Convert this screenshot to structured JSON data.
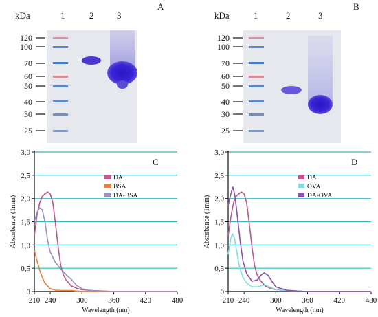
{
  "gels": [
    {
      "panel_label": "A",
      "unit": "kDa",
      "lane_labels": [
        "1",
        "2",
        "3"
      ],
      "markers": [
        "120",
        "100",
        "70",
        "60",
        "50",
        "40",
        "30",
        "25"
      ]
    },
    {
      "panel_label": "B",
      "unit": "kDa",
      "lane_labels": [
        "1",
        "2",
        "3"
      ],
      "markers": [
        "120",
        "100",
        "70",
        "60",
        "50",
        "40",
        "30",
        "25"
      ]
    }
  ],
  "chart_data": [
    {
      "type": "line",
      "panel_label": "C",
      "xlabel": "Wavelength (nm)",
      "ylabel": "Absorbance (1mm)",
      "xlim": [
        210,
        480
      ],
      "ylim": [
        0,
        3.0
      ],
      "x_ticks": [
        "210",
        "240",
        "300",
        "360",
        "420",
        "480"
      ],
      "y_ticks": [
        "0",
        "0,5",
        "1,0",
        "1,5",
        "2,0",
        "2,5",
        "3,0"
      ],
      "grid": "horizontal",
      "legend": "right",
      "series": [
        {
          "name": "DA",
          "color": "#c0568c",
          "points": [
            [
              210,
              1.2
            ],
            [
              215,
              1.65
            ],
            [
              220,
              1.9
            ],
            [
              225,
              2.05
            ],
            [
              230,
              2.1
            ],
            [
              235,
              2.14
            ],
            [
              240,
              2.1
            ],
            [
              245,
              1.9
            ],
            [
              250,
              1.45
            ],
            [
              255,
              0.95
            ],
            [
              260,
              0.55
            ],
            [
              265,
              0.35
            ],
            [
              270,
              0.25
            ],
            [
              275,
              0.18
            ],
            [
              280,
              0.12
            ],
            [
              290,
              0.07
            ],
            [
              300,
              0.04
            ],
            [
              320,
              0.02
            ],
            [
              340,
              0.01
            ],
            [
              360,
              0.0
            ],
            [
              420,
              0.0
            ],
            [
              480,
              0.0
            ]
          ]
        },
        {
          "name": "BSA",
          "color": "#e8823c",
          "points": [
            [
              210,
              0.88
            ],
            [
              215,
              0.66
            ],
            [
              220,
              0.46
            ],
            [
              225,
              0.3
            ],
            [
              230,
              0.18
            ],
            [
              240,
              0.06
            ],
            [
              250,
              0.03
            ],
            [
              260,
              0.02
            ],
            [
              270,
              0.02
            ],
            [
              280,
              0.02
            ],
            [
              290,
              0.01
            ],
            [
              300,
              0.0
            ],
            [
              360,
              0.0
            ],
            [
              420,
              0.0
            ],
            [
              480,
              0.0
            ]
          ]
        },
        {
          "name": "DA-BSA",
          "color": "#9a90bb",
          "points": [
            [
              210,
              1.5
            ],
            [
              215,
              1.7
            ],
            [
              220,
              1.8
            ],
            [
              225,
              1.75
            ],
            [
              230,
              1.5
            ],
            [
              235,
              1.1
            ],
            [
              240,
              0.85
            ],
            [
              250,
              0.62
            ],
            [
              260,
              0.48
            ],
            [
              270,
              0.36
            ],
            [
              280,
              0.26
            ],
            [
              290,
              0.13
            ],
            [
              300,
              0.06
            ],
            [
              310,
              0.03
            ],
            [
              330,
              0.01
            ],
            [
              360,
              0.0
            ],
            [
              420,
              0.0
            ],
            [
              480,
              0.0
            ]
          ]
        }
      ]
    },
    {
      "type": "line",
      "panel_label": "D",
      "xlabel": "Wavelength (nm)",
      "ylabel": "Absorbance (1mm)",
      "xlim": [
        210,
        480
      ],
      "ylim": [
        0,
        3.0
      ],
      "x_ticks": [
        "210",
        "240",
        "300",
        "360",
        "420",
        "480"
      ],
      "y_ticks": [
        "0",
        "0,5",
        "1,0",
        "1,5",
        "2,0",
        "2,5",
        "3,0"
      ],
      "grid": "horizontal",
      "legend": "right",
      "series": [
        {
          "name": "DA",
          "color": "#c0568c",
          "points": [
            [
              210,
              1.2
            ],
            [
              215,
              1.6
            ],
            [
              220,
              1.9
            ],
            [
              225,
              2.05
            ],
            [
              230,
              2.1
            ],
            [
              235,
              2.14
            ],
            [
              240,
              2.1
            ],
            [
              245,
              1.9
            ],
            [
              250,
              1.45
            ],
            [
              255,
              0.95
            ],
            [
              260,
              0.55
            ],
            [
              265,
              0.35
            ],
            [
              270,
              0.25
            ],
            [
              275,
              0.18
            ],
            [
              280,
              0.12
            ],
            [
              290,
              0.07
            ],
            [
              300,
              0.04
            ],
            [
              320,
              0.02
            ],
            [
              340,
              0.01
            ],
            [
              360,
              0.0
            ],
            [
              420,
              0.0
            ],
            [
              480,
              0.0
            ]
          ]
        },
        {
          "name": "OVA",
          "color": "#7fe0e6",
          "points": [
            [
              210,
              0.8
            ],
            [
              215,
              1.15
            ],
            [
              218,
              1.24
            ],
            [
              222,
              1.15
            ],
            [
              227,
              0.8
            ],
            [
              232,
              0.5
            ],
            [
              238,
              0.3
            ],
            [
              245,
              0.18
            ],
            [
              255,
              0.1
            ],
            [
              265,
              0.1
            ],
            [
              275,
              0.13
            ],
            [
              280,
              0.14
            ],
            [
              290,
              0.09
            ],
            [
              300,
              0.04
            ],
            [
              320,
              0.02
            ],
            [
              360,
              0.0
            ],
            [
              420,
              0.0
            ],
            [
              480,
              0.0
            ]
          ]
        },
        {
          "name": "DA-OVA",
          "color": "#8a4fa8",
          "points": [
            [
              210,
              1.85
            ],
            [
              215,
              2.1
            ],
            [
              219,
              2.25
            ],
            [
              223,
              2.05
            ],
            [
              228,
              1.55
            ],
            [
              233,
              1.05
            ],
            [
              238,
              0.65
            ],
            [
              245,
              0.38
            ],
            [
              255,
              0.22
            ],
            [
              265,
              0.25
            ],
            [
              272,
              0.35
            ],
            [
              278,
              0.4
            ],
            [
              285,
              0.35
            ],
            [
              295,
              0.18
            ],
            [
              300,
              0.1
            ],
            [
              320,
              0.03
            ],
            [
              340,
              0.01
            ],
            [
              360,
              0.0
            ],
            [
              420,
              0.0
            ],
            [
              480,
              0.0
            ]
          ]
        }
      ]
    }
  ]
}
